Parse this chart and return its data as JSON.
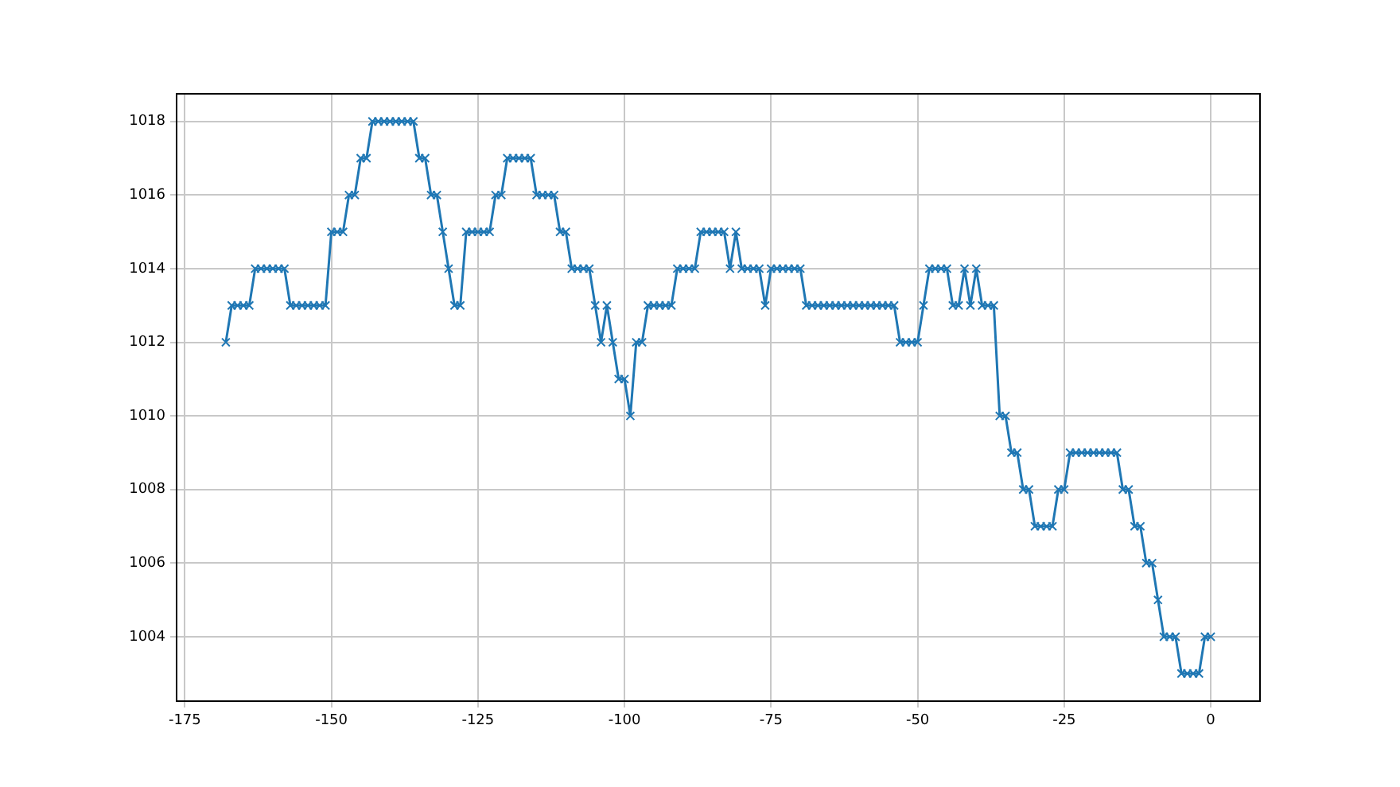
{
  "chart_data": {
    "type": "line",
    "x": [
      -168,
      -167,
      -166,
      -165,
      -164,
      -163,
      -162,
      -161,
      -160,
      -159,
      -158,
      -157,
      -156,
      -155,
      -154,
      -153,
      -152,
      -151,
      -150,
      -149,
      -148,
      -147,
      -146,
      -145,
      -144,
      -143,
      -142,
      -141,
      -140,
      -139,
      -138,
      -137,
      -136,
      -135,
      -134,
      -133,
      -132,
      -131,
      -130,
      -129,
      -128,
      -127,
      -126,
      -125,
      -124,
      -123,
      -122,
      -121,
      -120,
      -119,
      -118,
      -117,
      -116,
      -115,
      -114,
      -113,
      -112,
      -111,
      -110,
      -109,
      -108,
      -107,
      -106,
      -105,
      -104,
      -103,
      -102,
      -101,
      -100,
      -99,
      -98,
      -97,
      -96,
      -95,
      -94,
      -93,
      -92,
      -91,
      -90,
      -89,
      -88,
      -87,
      -86,
      -85,
      -84,
      -83,
      -82,
      -81,
      -80,
      -79,
      -78,
      -77,
      -76,
      -75,
      -74,
      -73,
      -72,
      -71,
      -70,
      -69,
      -68,
      -67,
      -66,
      -65,
      -64,
      -63,
      -62,
      -61,
      -60,
      -59,
      -58,
      -57,
      -56,
      -55,
      -54,
      -53,
      -52,
      -51,
      -50,
      -49,
      -48,
      -47,
      -46,
      -45,
      -44,
      -43,
      -42,
      -41,
      -40,
      -39,
      -38,
      -37,
      -36,
      -35,
      -34,
      -33,
      -32,
      -31,
      -30,
      -29,
      -28,
      -27,
      -26,
      -25,
      -24,
      -23,
      -22,
      -21,
      -20,
      -19,
      -18,
      -17,
      -16,
      -15,
      -14,
      -13,
      -12,
      -11,
      -10,
      -9,
      -8,
      -7,
      -6,
      -5,
      -4,
      -3,
      -2,
      -1,
      0
    ],
    "series": [
      {
        "color": "#1f77b4",
        "values": [
          1012,
          1013,
          1013,
          1013,
          1013,
          1014,
          1014,
          1014,
          1014,
          1014,
          1014,
          1013,
          1013,
          1013,
          1013,
          1013,
          1013,
          1013,
          1015,
          1015,
          1015,
          1016,
          1016,
          1017,
          1017,
          1018,
          1018,
          1018,
          1018,
          1018,
          1018,
          1018,
          1018,
          1017,
          1017,
          1016,
          1016,
          1015,
          1014,
          1013,
          1013,
          1015,
          1015,
          1015,
          1015,
          1015,
          1016,
          1016,
          1017,
          1017,
          1017,
          1017,
          1017,
          1016,
          1016,
          1016,
          1016,
          1015,
          1015,
          1014,
          1014,
          1014,
          1014,
          1013,
          1012,
          1013,
          1012,
          1011,
          1011,
          1010,
          1012,
          1012,
          1013,
          1013,
          1013,
          1013,
          1013,
          1014,
          1014,
          1014,
          1014,
          1015,
          1015,
          1015,
          1015,
          1015,
          1014,
          1015,
          1014,
          1014,
          1014,
          1014,
          1013,
          1014,
          1014,
          1014,
          1014,
          1014,
          1014,
          1013,
          1013,
          1013,
          1013,
          1013,
          1013,
          1013,
          1013,
          1013,
          1013,
          1013,
          1013,
          1013,
          1013,
          1013,
          1013,
          1012,
          1012,
          1012,
          1012,
          1013,
          1014,
          1014,
          1014,
          1014,
          1013,
          1013,
          1014,
          1013,
          1014,
          1013,
          1013,
          1013,
          1010,
          1010,
          1009,
          1009,
          1008,
          1008,
          1007,
          1007,
          1007,
          1007,
          1008,
          1008,
          1009,
          1009,
          1009,
          1009,
          1009,
          1009,
          1009,
          1009,
          1009,
          1008,
          1008,
          1007,
          1007,
          1006,
          1006,
          1005,
          1004,
          1004,
          1004,
          1003,
          1003,
          1003,
          1003,
          1004,
          1004
        ]
      }
    ],
    "xlim": [
      -176.4,
      8.4
    ],
    "xticks": [
      -175,
      -150,
      -125,
      -100,
      -75,
      -50,
      -25,
      0
    ],
    "ylim": [
      1002.25,
      1018.75
    ],
    "yticks": [
      1004,
      1006,
      1008,
      1010,
      1012,
      1014,
      1016,
      1018
    ],
    "grid": true,
    "marker": "cross",
    "line_style": "solid",
    "legend": false
  }
}
